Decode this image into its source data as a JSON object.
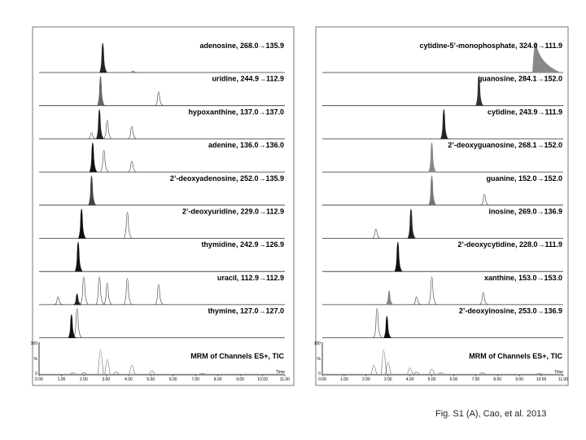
{
  "caption": "Fig. S1 (A), Cao, et al. 2013",
  "chart_data": [
    {
      "type": "line",
      "x_range": [
        0,
        11
      ],
      "tic": {
        "label": "MRM of Channels ES+, TIC",
        "y_tick_labels": [
          "100",
          "%",
          "0"
        ],
        "time_label": "Time",
        "x_ticks": [
          "0.00",
          "1.00",
          "2.00",
          "3.00",
          "4.00",
          "5.00",
          "6.00",
          "7.00",
          "8.00",
          "9.00",
          "10.00",
          "11.00"
        ],
        "peaks": [
          [
            1.5,
            0.08
          ],
          [
            2.0,
            0.08
          ],
          [
            2.75,
            0.9
          ],
          [
            3.05,
            0.55
          ],
          [
            3.45,
            0.1
          ],
          [
            4.15,
            0.35
          ],
          [
            5.05,
            0.15
          ],
          [
            7.3,
            0.05
          ]
        ]
      },
      "traces": [
        {
          "label": "adenosine, 268.0→135.9",
          "peaks": [
            {
              "t": 2.85,
              "h": 0.95,
              "filled": true,
              "color": "#222222"
            },
            {
              "t": 4.2,
              "h": 0.04,
              "filled": false
            }
          ]
        },
        {
          "label": "uridine, 244.9→112.9",
          "peaks": [
            {
              "t": 2.75,
              "h": 0.95,
              "filled": true,
              "color": "#666666"
            },
            {
              "t": 5.35,
              "h": 0.45,
              "filled": false
            }
          ]
        },
        {
          "label": "hypoxanthine, 137.0→137.0",
          "peaks": [
            {
              "t": 2.35,
              "h": 0.2,
              "filled": false
            },
            {
              "t": 2.7,
              "h": 0.95,
              "filled": true,
              "color": "#222222"
            },
            {
              "t": 3.05,
              "h": 0.6,
              "filled": false
            },
            {
              "t": 4.15,
              "h": 0.4,
              "filled": false
            }
          ]
        },
        {
          "label": "adenine, 136.0→136.0",
          "peaks": [
            {
              "t": 2.4,
              "h": 0.95,
              "filled": true,
              "color": "#111111"
            },
            {
              "t": 2.9,
              "h": 0.7,
              "filled": false
            },
            {
              "t": 4.15,
              "h": 0.35,
              "filled": false
            }
          ]
        },
        {
          "label": "2’-deoxyadenosine, 252.0→135.9",
          "peaks": [
            {
              "t": 2.35,
              "h": 0.95,
              "filled": true,
              "color": "#444444"
            }
          ]
        },
        {
          "label": "2’-deoxyuridine, 229.0→112.9",
          "peaks": [
            {
              "t": 1.9,
              "h": 0.95,
              "filled": true,
              "color": "#111111"
            },
            {
              "t": 3.95,
              "h": 0.85,
              "filled": false
            }
          ]
        },
        {
          "label": "thymidine, 242.9→126.9",
          "peaks": [
            {
              "t": 1.75,
              "h": 0.95,
              "filled": true,
              "color": "#111111"
            }
          ]
        },
        {
          "label": "uracil, 112.9→112.9",
          "peaks": [
            {
              "t": 0.85,
              "h": 0.25,
              "filled": false
            },
            {
              "t": 1.7,
              "h": 0.35,
              "filled": true,
              "color": "#222222"
            },
            {
              "t": 2.0,
              "h": 0.9,
              "filled": false
            },
            {
              "t": 2.7,
              "h": 0.9,
              "filled": false
            },
            {
              "t": 3.05,
              "h": 0.7,
              "filled": false
            },
            {
              "t": 3.95,
              "h": 0.85,
              "filled": false
            },
            {
              "t": 5.35,
              "h": 0.65,
              "filled": false
            }
          ]
        },
        {
          "label": "thymine, 127.0→127.0",
          "peaks": [
            {
              "t": 1.45,
              "h": 0.75,
              "filled": true,
              "color": "#111111"
            },
            {
              "t": 1.7,
              "h": 0.95,
              "filled": false
            }
          ]
        }
      ]
    },
    {
      "type": "line",
      "x_range": [
        0,
        11
      ],
      "tic": {
        "label": "MRM of Channels ES+, TIC",
        "y_tick_labels": [
          "100",
          "%",
          "0"
        ],
        "time_label": "Time",
        "x_ticks": [
          "0.00",
          "1.00",
          "2.00",
          "3.00",
          "4.00",
          "5.00",
          "6.00",
          "7.00",
          "8.00",
          "9.00",
          "10.00",
          "11.00"
        ],
        "peaks": [
          [
            2.35,
            0.35
          ],
          [
            2.8,
            0.9
          ],
          [
            3.0,
            0.45
          ],
          [
            4.0,
            0.25
          ],
          [
            4.3,
            0.1
          ],
          [
            5.0,
            0.2
          ],
          [
            5.4,
            0.08
          ],
          [
            7.3,
            0.08
          ],
          [
            9.9,
            0.05
          ]
        ]
      },
      "traces": [
        {
          "label": "cytidine-5’-monophosphate, 324.0→111.9",
          "peaks": [
            {
              "t": 9.75,
              "h": 0.95,
              "filled": true,
              "color": "#888888",
              "tail": true
            }
          ]
        },
        {
          "label": "guanosine, 284.1→152.0",
          "peaks": [
            {
              "t": 7.15,
              "h": 0.95,
              "filled": true,
              "color": "#333333"
            }
          ]
        },
        {
          "label": "cytidine, 243.9→111.9",
          "peaks": [
            {
              "t": 5.55,
              "h": 0.95,
              "filled": true,
              "color": "#222222"
            }
          ]
        },
        {
          "label": "2’-deoxyguanosine, 268.1→152.0",
          "peaks": [
            {
              "t": 5.0,
              "h": 0.95,
              "filled": true,
              "color": "#888888"
            }
          ]
        },
        {
          "label": "guanine, 152.0→152.0",
          "peaks": [
            {
              "t": 5.0,
              "h": 0.95,
              "filled": true,
              "color": "#777777"
            },
            {
              "t": 7.4,
              "h": 0.35,
              "filled": false
            }
          ]
        },
        {
          "label": "inosine, 269.0→136.9",
          "peaks": [
            {
              "t": 2.45,
              "h": 0.3,
              "filled": false
            },
            {
              "t": 4.05,
              "h": 0.95,
              "filled": true,
              "color": "#222222"
            }
          ]
        },
        {
          "label": "2’-deoxycytidine, 228.0→111.9",
          "peaks": [
            {
              "t": 3.45,
              "h": 0.95,
              "filled": true,
              "color": "#111111"
            }
          ]
        },
        {
          "label": "xanthine, 153.0→153.0",
          "peaks": [
            {
              "t": 3.05,
              "h": 0.45,
              "filled": true,
              "color": "#888888"
            },
            {
              "t": 4.3,
              "h": 0.25,
              "filled": false
            },
            {
              "t": 5.0,
              "h": 0.9,
              "filled": false
            },
            {
              "t": 7.35,
              "h": 0.4,
              "filled": false
            }
          ]
        },
        {
          "label": "2’-deoxyinosine, 253.0→136.9",
          "peaks": [
            {
              "t": 2.5,
              "h": 0.95,
              "filled": false
            },
            {
              "t": 2.95,
              "h": 0.7,
              "filled": true,
              "color": "#111111"
            }
          ]
        }
      ]
    }
  ]
}
